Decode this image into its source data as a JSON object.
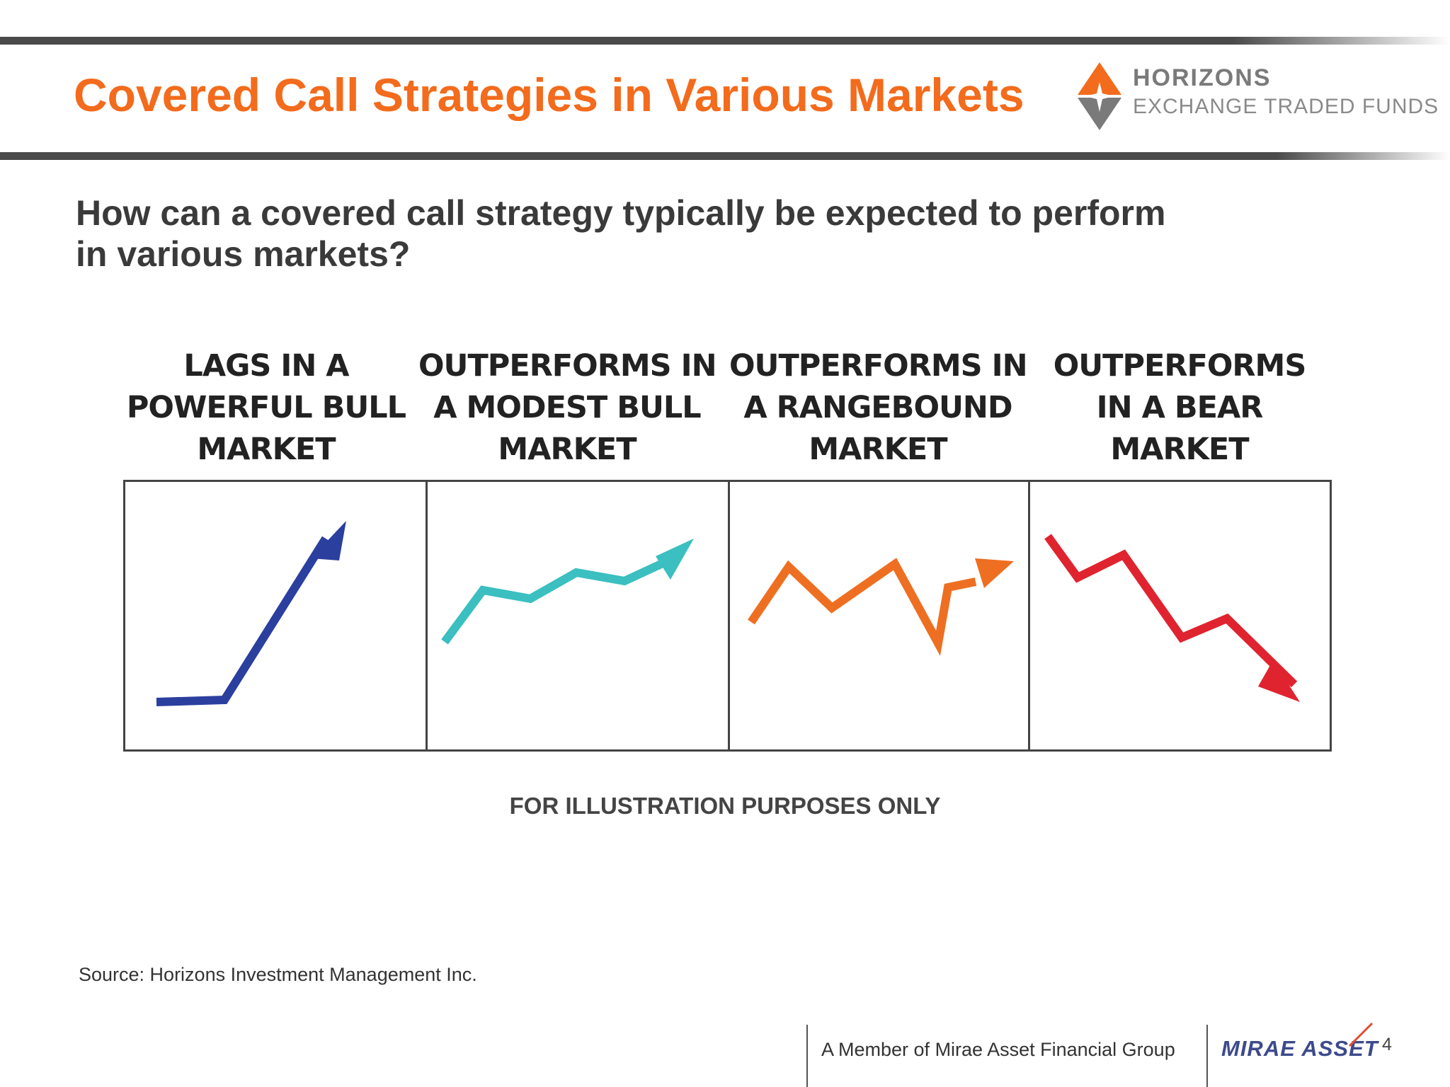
{
  "header": {
    "title": "Covered Call Strategies in Various Markets",
    "logo_line1": "HORIZONS",
    "logo_line2": "EXCHANGE TRADED FUNDS"
  },
  "question": {
    "line1": "How can a covered call strategy typically be expected to perform",
    "line2": "in various markets?"
  },
  "panels": [
    {
      "lines": [
        "LAGS IN A",
        "POWERFUL BULL",
        "MARKET"
      ],
      "color": "#2b3f9e",
      "trend": "up-sharp"
    },
    {
      "lines": [
        "OUTPERFORMS IN",
        "A MODEST BULL",
        "MARKET"
      ],
      "color": "#3bbfc0",
      "trend": "up-modest"
    },
    {
      "lines": [
        "OUTPERFORMS IN",
        "A RANGEBOUND",
        "MARKET"
      ],
      "color": "#ee6f22",
      "trend": "sideways"
    },
    {
      "lines": [
        "OUTPERFORMS",
        "IN A BEAR",
        "MARKET"
      ],
      "color": "#e0242f",
      "trend": "down"
    }
  ],
  "note": "FOR ILLUSTRATION PURPOSES ONLY",
  "source": "Source:  Horizons Investment Management Inc.",
  "footer": {
    "member": "A Member of Mirae Asset Financial Group",
    "brand": "MIRAE ASSET",
    "page_number": "4"
  },
  "colors": {
    "title": "#f36b1c",
    "logo_orange": "#f36b1c",
    "logo_grey": "#7a7a7a"
  }
}
